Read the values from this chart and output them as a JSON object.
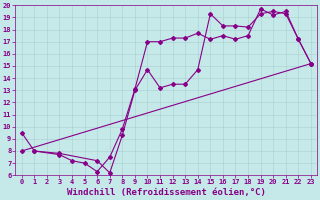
{
  "xlabel": "Windchill (Refroidissement éolien,°C)",
  "xlim": [
    -0.5,
    23.5
  ],
  "ylim": [
    6,
    20
  ],
  "xticks": [
    0,
    1,
    2,
    3,
    4,
    5,
    6,
    7,
    8,
    9,
    10,
    11,
    12,
    13,
    14,
    15,
    16,
    17,
    18,
    19,
    20,
    21,
    22,
    23
  ],
  "yticks": [
    6,
    7,
    8,
    9,
    10,
    11,
    12,
    13,
    14,
    15,
    16,
    17,
    18,
    19,
    20
  ],
  "bg_color": "#c5e8e8",
  "grid_color": "#aad0d0",
  "line_color": "#880088",
  "line1_x": [
    0,
    1,
    3,
    4,
    5,
    6,
    7,
    8,
    9,
    10,
    11,
    12,
    13,
    14,
    15,
    16,
    17,
    18,
    19,
    20,
    21,
    22,
    23
  ],
  "line1_y": [
    9.5,
    8.0,
    7.7,
    7.2,
    7.0,
    6.3,
    7.5,
    9.8,
    13.1,
    17.0,
    17.0,
    17.3,
    17.3,
    17.7,
    17.2,
    17.5,
    17.2,
    17.5,
    19.7,
    19.2,
    19.5,
    17.2,
    15.2
  ],
  "line2_x": [
    1,
    3,
    6,
    7,
    8,
    9,
    10,
    11,
    12,
    13,
    14,
    15,
    16,
    17,
    18,
    19,
    20,
    21,
    22,
    23
  ],
  "line2_y": [
    8.0,
    7.8,
    7.2,
    6.2,
    9.3,
    13.0,
    14.7,
    13.2,
    13.5,
    13.5,
    14.7,
    19.3,
    18.3,
    18.3,
    18.2,
    19.3,
    19.5,
    19.3,
    17.2,
    15.2
  ],
  "line3_x": [
    0,
    23
  ],
  "line3_y": [
    8.0,
    15.2
  ],
  "marker_style": "D",
  "marker_size": 2,
  "linewidth": 0.8,
  "tick_fontsize": 5,
  "xlabel_fontsize": 6.5
}
